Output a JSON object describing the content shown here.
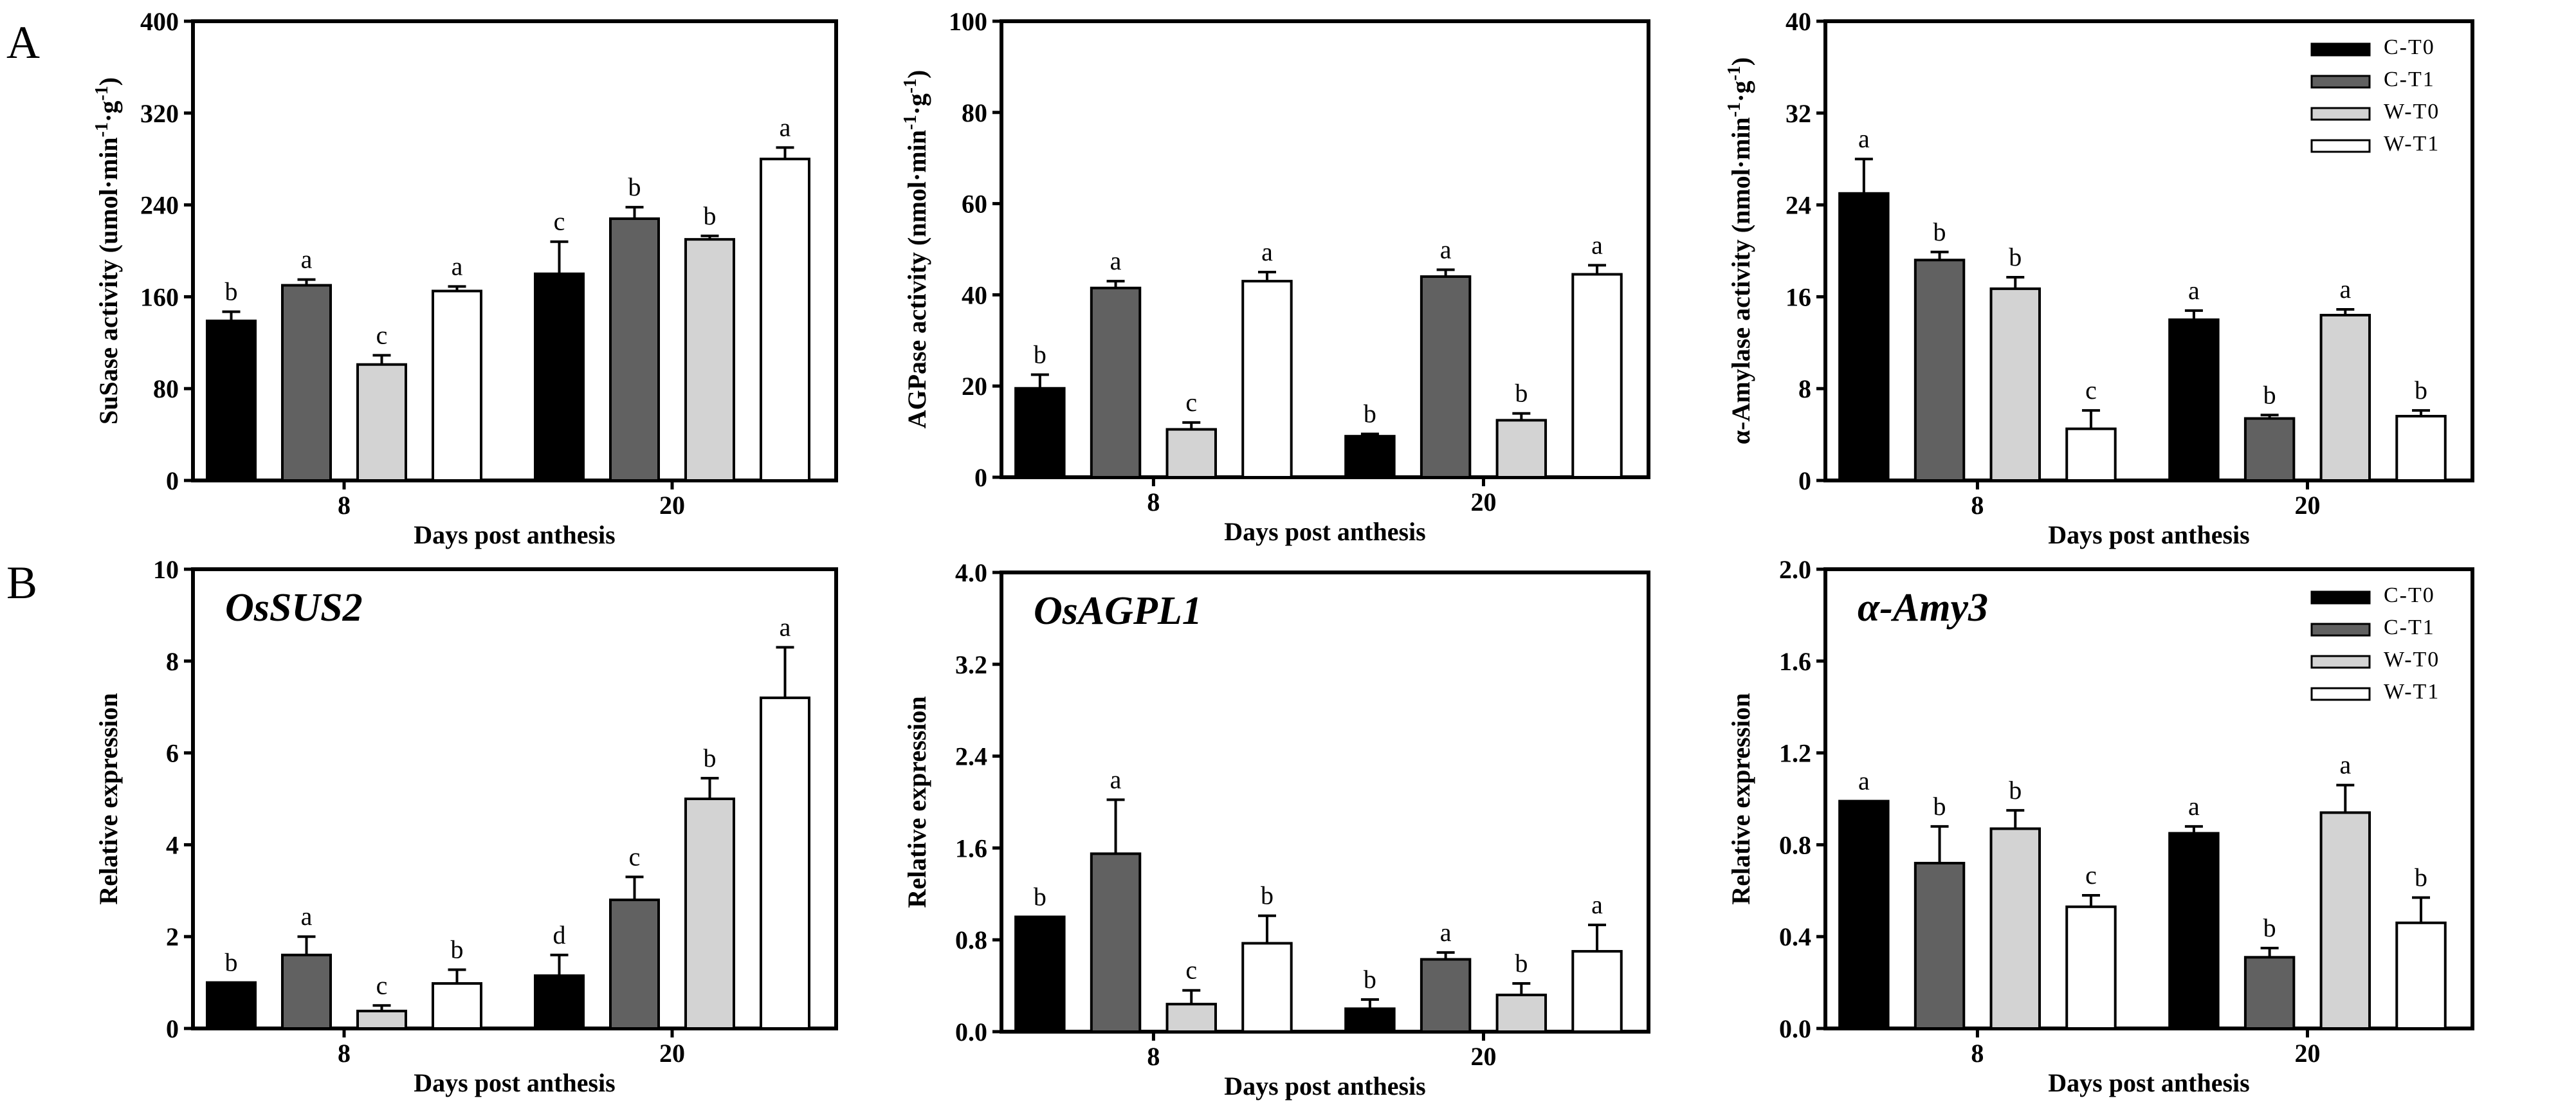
{
  "figure": {
    "panel_labels": [
      "A",
      "B"
    ],
    "legend": [
      {
        "label": "C-T0",
        "color": "#000000"
      },
      {
        "label": "C-T1",
        "color": "#616161"
      },
      {
        "label": "W-T0",
        "color": "#d3d3d3"
      },
      {
        "label": "W-T1",
        "color": "#ffffff"
      }
    ]
  },
  "chart_data": [
    {
      "type": "bar",
      "ylabel": "SuSase activity (umol·min⁻¹·g⁻¹)",
      "xlabel": "Days post  anthesis",
      "categories": [
        "8",
        "20"
      ],
      "ylim": [
        0,
        400
      ],
      "yticks": [
        "0",
        "80",
        "160",
        "240",
        "320",
        "400"
      ],
      "series": [
        {
          "name": "C-T0",
          "values": [
            139,
            180
          ],
          "errors": [
            8,
            28
          ],
          "letters": [
            "b",
            "c"
          ]
        },
        {
          "name": "C-T1",
          "values": [
            170,
            228
          ],
          "errors": [
            5,
            10
          ],
          "letters": [
            "a",
            "b"
          ]
        },
        {
          "name": "W-T0",
          "values": [
            101,
            210
          ],
          "errors": [
            8,
            3
          ],
          "letters": [
            "c",
            "b"
          ]
        },
        {
          "name": "W-T1",
          "values": [
            165,
            280
          ],
          "errors": [
            4,
            10
          ],
          "letters": [
            "a",
            "a"
          ]
        }
      ]
    },
    {
      "type": "bar",
      "ylabel": "AGPase activity (nmol·min⁻¹·g⁻¹)",
      "xlabel": "Days post  anthesis",
      "categories": [
        "8",
        "20"
      ],
      "ylim": [
        0,
        100
      ],
      "yticks": [
        "0",
        "20",
        "40",
        "60",
        "80",
        "100"
      ],
      "series": [
        {
          "name": "C-T0",
          "values": [
            19.5,
            9
          ],
          "errors": [
            3,
            0.5
          ],
          "letters": [
            "b",
            "b"
          ]
        },
        {
          "name": "C-T1",
          "values": [
            41.5,
            44
          ],
          "errors": [
            1.5,
            1.5
          ],
          "letters": [
            "a",
            "a"
          ]
        },
        {
          "name": "W-T0",
          "values": [
            10.5,
            12.5
          ],
          "errors": [
            1.5,
            1.5
          ],
          "letters": [
            "c",
            "b"
          ]
        },
        {
          "name": "W-T1",
          "values": [
            43,
            44.5
          ],
          "errors": [
            2,
            2
          ],
          "letters": [
            "a",
            "a"
          ]
        }
      ]
    },
    {
      "type": "bar",
      "ylabel": "α-Amylase activity (nmol·min⁻¹·g⁻¹)",
      "xlabel": "Days post  anthesis",
      "categories": [
        "8",
        "20"
      ],
      "ylim": [
        0,
        40
      ],
      "yticks": [
        "0",
        "8",
        "16",
        "24",
        "32",
        "40"
      ],
      "legend_position": "top-right",
      "series": [
        {
          "name": "C-T0",
          "values": [
            25,
            14
          ],
          "errors": [
            3,
            0.8
          ],
          "letters": [
            "a",
            "a"
          ]
        },
        {
          "name": "C-T1",
          "values": [
            19.2,
            5.4
          ],
          "errors": [
            0.7,
            0.3
          ],
          "letters": [
            "b",
            "b"
          ]
        },
        {
          "name": "W-T0",
          "values": [
            16.7,
            14.4
          ],
          "errors": [
            1,
            0.5
          ],
          "letters": [
            "b",
            "a"
          ]
        },
        {
          "name": "W-T1",
          "values": [
            4.5,
            5.6
          ],
          "errors": [
            1.6,
            0.5
          ],
          "letters": [
            "c",
            "b"
          ]
        }
      ]
    },
    {
      "type": "bar",
      "title": "OsSUS2",
      "ylabel": "Relative expression",
      "xlabel": "Days post  anthesis",
      "categories": [
        "8",
        "20"
      ],
      "ylim": [
        0,
        10
      ],
      "yticks": [
        "0",
        "2",
        "4",
        "6",
        "8",
        "10"
      ],
      "series": [
        {
          "name": "C-T0",
          "values": [
            1.0,
            1.15
          ],
          "errors": [
            0,
            0.45
          ],
          "letters": [
            "b",
            "d"
          ]
        },
        {
          "name": "C-T1",
          "values": [
            1.6,
            2.8
          ],
          "errors": [
            0.4,
            0.5
          ],
          "letters": [
            "a",
            "c"
          ]
        },
        {
          "name": "W-T0",
          "values": [
            0.38,
            5.0
          ],
          "errors": [
            0.12,
            0.45
          ],
          "letters": [
            "c",
            "b"
          ]
        },
        {
          "name": "W-T1",
          "values": [
            0.98,
            7.2
          ],
          "errors": [
            0.3,
            1.1
          ],
          "letters": [
            "b",
            "a"
          ]
        }
      ]
    },
    {
      "type": "bar",
      "title": "OsAGPL1",
      "ylabel": "Relative expression",
      "xlabel": "Days post  anthesis",
      "categories": [
        "8",
        "20"
      ],
      "ylim": [
        0,
        4
      ],
      "yticks": [
        "0.0",
        "0.8",
        "1.6",
        "2.4",
        "3.2",
        "4.0"
      ],
      "series": [
        {
          "name": "C-T0",
          "values": [
            1.0,
            0.2
          ],
          "errors": [
            0,
            0.08
          ],
          "letters": [
            "b",
            "b"
          ]
        },
        {
          "name": "C-T1",
          "values": [
            1.55,
            0.63
          ],
          "errors": [
            0.47,
            0.06
          ],
          "letters": [
            "a",
            "a"
          ]
        },
        {
          "name": "W-T0",
          "values": [
            0.24,
            0.32
          ],
          "errors": [
            0.12,
            0.1
          ],
          "letters": [
            "c",
            "b"
          ]
        },
        {
          "name": "W-T1",
          "values": [
            0.77,
            0.7
          ],
          "errors": [
            0.24,
            0.23
          ],
          "letters": [
            "b",
            "a"
          ]
        }
      ]
    },
    {
      "type": "bar",
      "title": "α-Amy3",
      "ylabel": "Relative expression",
      "xlabel": "Days post  anthesis",
      "categories": [
        "8",
        "20"
      ],
      "ylim": [
        0,
        2
      ],
      "yticks": [
        "0.0",
        "0.4",
        "0.8",
        "1.2",
        "1.6",
        "2.0"
      ],
      "legend_position": "top-right",
      "series": [
        {
          "name": "C-T0",
          "values": [
            0.99,
            0.85
          ],
          "errors": [
            0,
            0.03
          ],
          "letters": [
            "a",
            "a"
          ]
        },
        {
          "name": "C-T1",
          "values": [
            0.72,
            0.31
          ],
          "errors": [
            0.16,
            0.04
          ],
          "letters": [
            "b",
            "b"
          ]
        },
        {
          "name": "W-T0",
          "values": [
            0.87,
            0.94
          ],
          "errors": [
            0.08,
            0.12
          ],
          "letters": [
            "b",
            "a"
          ]
        },
        {
          "name": "W-T1",
          "values": [
            0.53,
            0.46
          ],
          "errors": [
            0.05,
            0.11
          ],
          "letters": [
            "c",
            "b"
          ]
        }
      ]
    }
  ]
}
